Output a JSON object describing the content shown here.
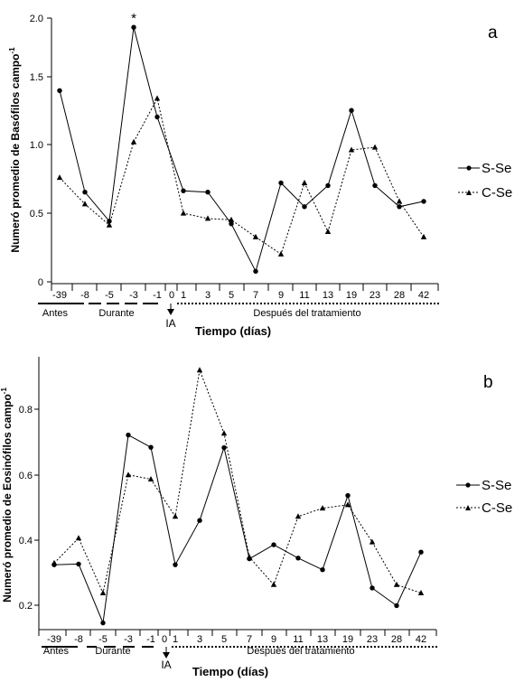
{
  "colors": {
    "s_se": "#000000",
    "c_se": "#000000",
    "axis": "#000000"
  },
  "chart_data": [
    {
      "type": "line",
      "panel_label": "a",
      "ylabel": "Numeró promedio de Basófilos campo-1",
      "ylabel_main": "Numeró promedio de Basófilos campo",
      "ylabel_sup": "-1",
      "xlabel": "Tiempo (días)",
      "categories": [
        "-39",
        "-8",
        "-5",
        "-3",
        "-1",
        "0",
        "1",
        "3",
        "5",
        "7",
        "9",
        "11",
        "13",
        "19",
        "23",
        "28",
        "42"
      ],
      "ylim": [
        0,
        2.0
      ],
      "yticks": [
        "0",
        "0.5",
        "1.0",
        "1.5",
        "2.0"
      ],
      "ytick_values": [
        0,
        0.5,
        1.0,
        1.5,
        2.0
      ],
      "phases": [
        "Antes",
        "Durante",
        "Después del tratamiento"
      ],
      "event_label": "IA",
      "annotation": "*",
      "series": [
        {
          "name": "S-Se",
          "marker": "circle",
          "dash": "solid",
          "x": [
            "-39",
            "-8",
            "-5",
            "-3",
            "-1",
            "1",
            "3",
            "5",
            "7",
            "9",
            "11",
            "13",
            "19",
            "23",
            "28",
            "42"
          ],
          "values": [
            1.45,
            0.68,
            0.46,
            1.93,
            1.25,
            0.69,
            0.68,
            0.44,
            0.08,
            0.75,
            0.57,
            0.73,
            1.3,
            0.73,
            0.57,
            0.61
          ]
        },
        {
          "name": "C-Se",
          "marker": "triangle",
          "dash": "dotted",
          "x": [
            "-39",
            "-8",
            "-5",
            "-3",
            "-1",
            "1",
            "3",
            "5",
            "7",
            "9",
            "11",
            "13",
            "19",
            "23",
            "28",
            "42"
          ],
          "values": [
            0.79,
            0.59,
            0.43,
            1.06,
            1.39,
            0.52,
            0.48,
            0.47,
            0.34,
            0.21,
            0.75,
            0.38,
            1.0,
            1.02,
            0.61,
            0.34
          ]
        }
      ]
    },
    {
      "type": "line",
      "panel_label": "b",
      "ylabel": "Numeró promedio de Eosinófilos campo-1",
      "ylabel_main": "Numeró promedio de Eosinófilos campo",
      "ylabel_sup": "-1",
      "xlabel": "Tiempo (días)",
      "categories": [
        "-39",
        "-8",
        "-5",
        "-3",
        "-1",
        "0",
        "1",
        "3",
        "5",
        "7",
        "9",
        "11",
        "13",
        "19",
        "23",
        "28",
        "42"
      ],
      "ylim": [
        0.16,
        0.98
      ],
      "yticks": [
        "0.2",
        "0.4",
        "0.6",
        "0.8"
      ],
      "ytick_values": [
        0.2,
        0.4,
        0.6,
        0.8
      ],
      "phases": [
        "Antes",
        "Durante",
        "Después del tratamiento"
      ],
      "event_label": "IA",
      "series": [
        {
          "name": "S-Se",
          "marker": "circle",
          "dash": "solid",
          "x": [
            "-39",
            "-8",
            "-5",
            "-3",
            "-1",
            "1",
            "3",
            "5",
            "7",
            "9",
            "11",
            "13",
            "19",
            "23",
            "28",
            "42"
          ],
          "values": [
            0.355,
            0.357,
            0.18,
            0.745,
            0.708,
            0.355,
            0.488,
            0.707,
            0.373,
            0.415,
            0.375,
            0.34,
            0.563,
            0.285,
            0.232,
            0.393
          ]
        },
        {
          "name": "C-Se",
          "marker": "triangle",
          "dash": "dotted",
          "x": [
            "-39",
            "-8",
            "-5",
            "-3",
            "-1",
            "1",
            "3",
            "5",
            "7",
            "9",
            "11",
            "13",
            "19",
            "23",
            "28",
            "42"
          ],
          "values": [
            0.36,
            0.435,
            0.27,
            0.625,
            0.612,
            0.5,
            0.94,
            0.75,
            0.378,
            0.295,
            0.5,
            0.525,
            0.535,
            0.423,
            0.295,
            0.27
          ]
        }
      ]
    }
  ]
}
